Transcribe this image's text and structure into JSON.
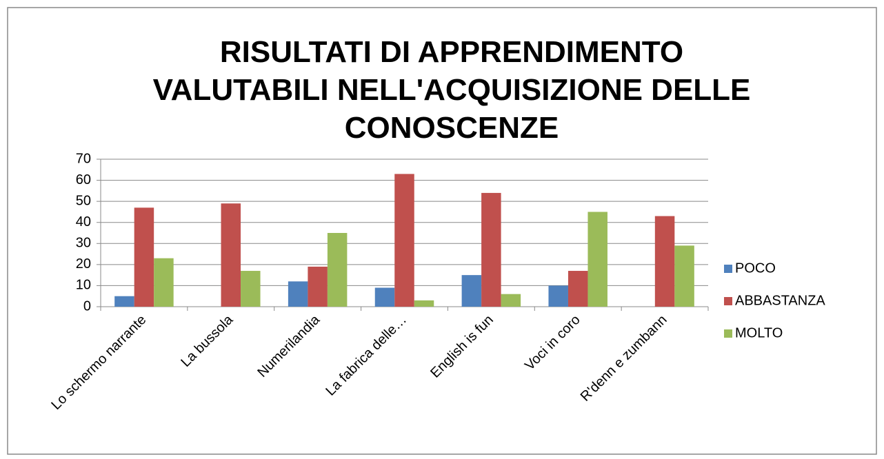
{
  "chart_data": {
    "type": "bar",
    "title": [
      "RISULTATI DI APPRENDIMENTO",
      "VALUTABILI NELL'ACQUISIZIONE DELLE",
      "CONOSCENZE"
    ],
    "categories": [
      "Lo schermo narrante",
      "La bussola",
      "Numerilandia",
      "La fabrica delle…",
      "English is fun",
      "Voci in coro",
      "R'denn e zumbann"
    ],
    "series": [
      {
        "name": "POCO",
        "color": "#4f81bd",
        "values": [
          5,
          0,
          12,
          9,
          15,
          10,
          0
        ]
      },
      {
        "name": "ABBASTANZA",
        "color": "#c0504d",
        "values": [
          47,
          49,
          19,
          63,
          54,
          17,
          43
        ]
      },
      {
        "name": "MOLTO",
        "color": "#9bbb59",
        "values": [
          23,
          17,
          35,
          3,
          6,
          45,
          29
        ]
      }
    ],
    "ylim": [
      0,
      70
    ],
    "yticks": [
      0,
      10,
      20,
      30,
      40,
      50,
      60,
      70
    ],
    "grid": true,
    "legend": "right"
  }
}
